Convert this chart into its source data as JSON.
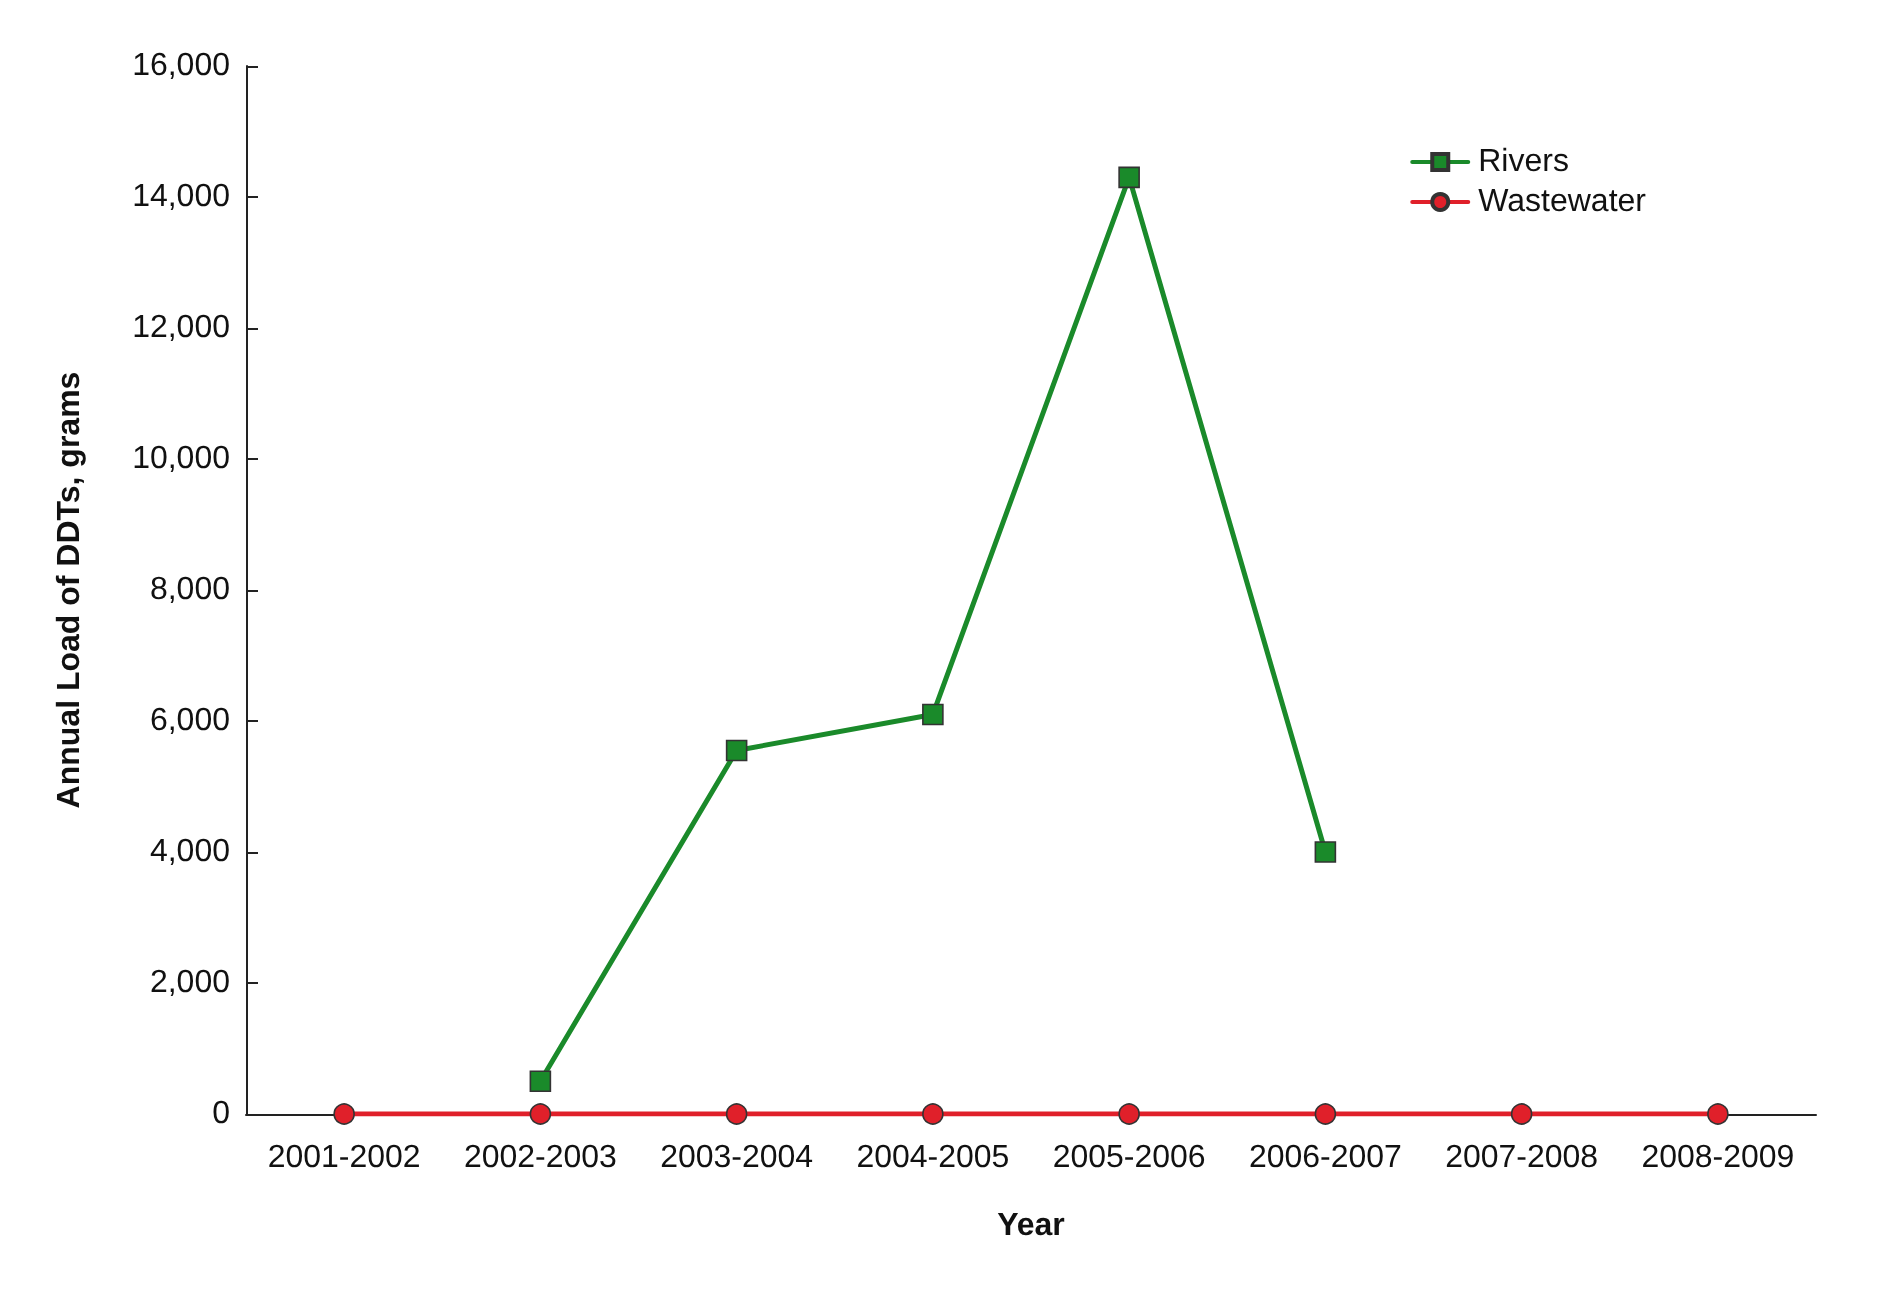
{
  "chart_data": {
    "type": "line",
    "xlabel": "Year",
    "ylabel": "Annual Load of DDTs, grams",
    "categories": [
      "2001-2002",
      "2002-2003",
      "2003-2004",
      "2004-2005",
      "2005-2006",
      "2006-2007",
      "2007-2008",
      "2008-2009"
    ],
    "series": [
      {
        "name": "Rivers",
        "color": "#1a8a2a",
        "marker": "square",
        "values": [
          null,
          500,
          5550,
          6100,
          14300,
          4000,
          null,
          null
        ]
      },
      {
        "name": "Wastewater",
        "color": "#e0202a",
        "marker": "circle",
        "values": [
          0,
          0,
          0,
          0,
          0,
          0,
          0,
          0
        ]
      }
    ],
    "ylim": [
      0,
      16000
    ],
    "yticks": [
      0,
      {
        "value": 2000,
        "label": "2,000"
      },
      {
        "value": 4000,
        "label": "4,000"
      },
      {
        "value": 6000,
        "label": "6,000"
      },
      {
        "value": 8000,
        "label": "8,000"
      },
      {
        "value": 10000,
        "label": "10,000"
      },
      {
        "value": 12000,
        "label": "12,000"
      },
      {
        "value": 14000,
        "label": "14,000"
      },
      {
        "value": 16000,
        "label": "16,000"
      }
    ],
    "grid": false,
    "legend": "top right",
    "line_style": "solid"
  }
}
